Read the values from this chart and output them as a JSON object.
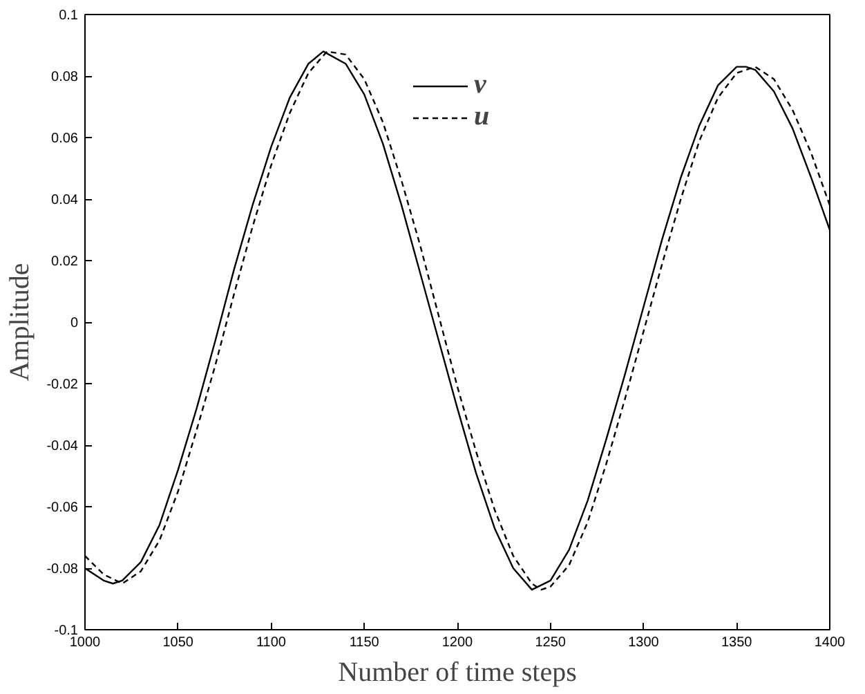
{
  "chart_data": {
    "type": "line",
    "xlabel": "Number of time steps",
    "ylabel": "Amplitude",
    "xlim": [
      1000,
      1400
    ],
    "xticks": [
      1000,
      1050,
      1100,
      1150,
      1200,
      1250,
      1300,
      1350,
      1400
    ],
    "ylim": [
      -0.1,
      0.1
    ],
    "yticks": [
      -0.1,
      -0.08,
      -0.06,
      -0.04,
      -0.02,
      0,
      0.02,
      0.04,
      0.06,
      0.08,
      0.1
    ],
    "grid": false,
    "legend": "top",
    "marker": "none",
    "series": [
      {
        "name": "v",
        "color": "#000000",
        "line_style": "solid",
        "x": [
          1000,
          1010,
          1015,
          1020,
          1030,
          1040,
          1050,
          1060,
          1070,
          1080,
          1090,
          1100,
          1110,
          1120,
          1128,
          1140,
          1150,
          1160,
          1170,
          1180,
          1190,
          1200,
          1210,
          1220,
          1230,
          1240,
          1250,
          1260,
          1270,
          1280,
          1290,
          1300,
          1310,
          1320,
          1330,
          1340,
          1350,
          1355,
          1360,
          1370,
          1380,
          1390,
          1400
        ],
        "values": [
          -0.08,
          -0.084,
          -0.085,
          -0.084,
          -0.078,
          -0.066,
          -0.048,
          -0.028,
          -0.006,
          0.017,
          0.038,
          0.057,
          0.073,
          0.084,
          0.088,
          0.084,
          0.074,
          0.058,
          0.038,
          0.016,
          -0.006,
          -0.028,
          -0.049,
          -0.067,
          -0.08,
          -0.087,
          -0.084,
          -0.074,
          -0.058,
          -0.038,
          -0.017,
          0.005,
          0.027,
          0.047,
          0.064,
          0.077,
          0.083,
          0.083,
          0.082,
          0.075,
          0.063,
          0.047,
          0.03
        ]
      },
      {
        "name": "u",
        "color": "#000000",
        "line_style": "dashed",
        "x": [
          1000,
          1010,
          1020,
          1030,
          1040,
          1050,
          1060,
          1070,
          1080,
          1090,
          1100,
          1110,
          1120,
          1130,
          1140,
          1150,
          1160,
          1170,
          1180,
          1190,
          1200,
          1210,
          1220,
          1230,
          1240,
          1245,
          1250,
          1260,
          1270,
          1280,
          1290,
          1300,
          1310,
          1320,
          1330,
          1340,
          1350,
          1360,
          1370,
          1380,
          1390,
          1400
        ],
        "values": [
          -0.076,
          -0.082,
          -0.085,
          -0.081,
          -0.071,
          -0.055,
          -0.035,
          -0.014,
          0.009,
          0.031,
          0.051,
          0.068,
          0.081,
          0.088,
          0.087,
          0.079,
          0.065,
          0.046,
          0.025,
          0.002,
          -0.021,
          -0.042,
          -0.061,
          -0.076,
          -0.085,
          -0.087,
          -0.086,
          -0.079,
          -0.065,
          -0.046,
          -0.025,
          -0.003,
          0.019,
          0.04,
          0.059,
          0.073,
          0.081,
          0.083,
          0.079,
          0.069,
          0.055,
          0.038
        ]
      }
    ]
  }
}
